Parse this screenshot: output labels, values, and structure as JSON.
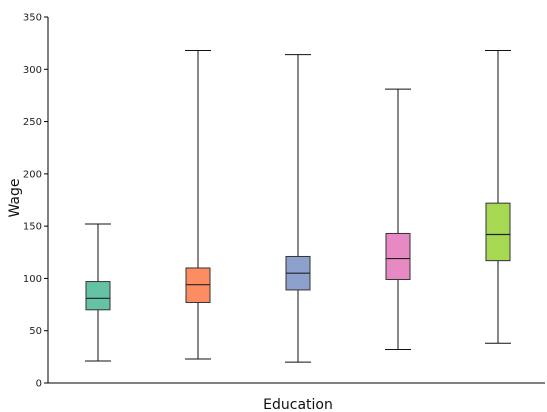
{
  "chart_data": {
    "type": "box",
    "title": "",
    "xlabel": "Education",
    "ylabel": "Wage",
    "ylim": [
      0,
      350
    ],
    "yticks": [
      0,
      50,
      100,
      150,
      200,
      250,
      300,
      350
    ],
    "x_tick_labels_visible": false,
    "grid": false,
    "legend": "none",
    "boxes": [
      {
        "min": 21,
        "q1": 70,
        "median": 81,
        "q3": 97,
        "max": 152,
        "color": "#66c2a5"
      },
      {
        "min": 23,
        "q1": 77,
        "median": 94,
        "q3": 110,
        "max": 318,
        "color": "#fc8d62"
      },
      {
        "min": 20,
        "q1": 89,
        "median": 105,
        "q3": 121,
        "max": 314,
        "color": "#8da0cb"
      },
      {
        "min": 32,
        "q1": 99,
        "median": 119,
        "q3": 143,
        "max": 281,
        "color": "#e78ac3"
      },
      {
        "min": 38,
        "q1": 117,
        "median": 142,
        "q3": 172,
        "max": 318,
        "color": "#a6d854"
      }
    ]
  }
}
